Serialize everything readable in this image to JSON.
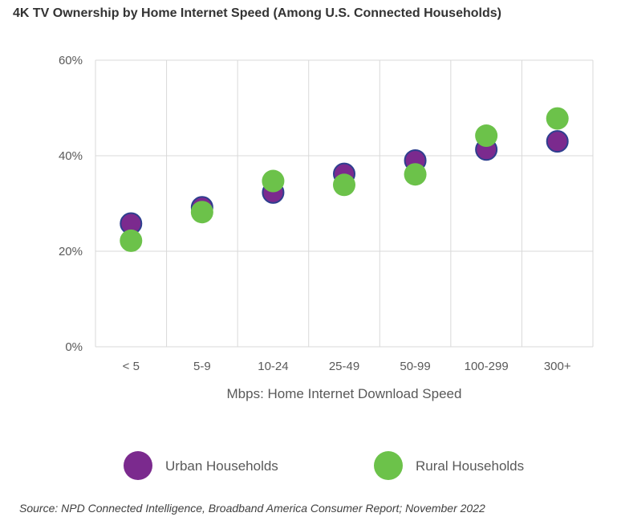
{
  "chart_data": {
    "type": "scatter",
    "title": "4K TV Ownership by Home Internet Speed (Among U.S. Connected Households)",
    "xlabel": "Mbps: Home Internet Download Speed",
    "ylabel": "",
    "categories": [
      "< 5",
      "5-9",
      "10-24",
      "25-49",
      "50-99",
      "100-299",
      "300+"
    ],
    "yticks": [
      "0%",
      "20%",
      "40%",
      "60%"
    ],
    "ylim": [
      0,
      60
    ],
    "grid": true,
    "legend_position": "bottom",
    "series": [
      {
        "name": "Urban Households",
        "color": "#7B2A8E",
        "edge": "#2E3F8F",
        "values": [
          25.8,
          29.2,
          32.3,
          36.2,
          39.0,
          41.3,
          43.0
        ]
      },
      {
        "name": "Rural Households",
        "color": "#6CC24A",
        "values": [
          22.2,
          28.2,
          34.7,
          33.9,
          36.1,
          44.2,
          47.8
        ]
      }
    ],
    "source": "Source: NPD Connected Intelligence, Broadband America Consumer Report; November 2022"
  }
}
